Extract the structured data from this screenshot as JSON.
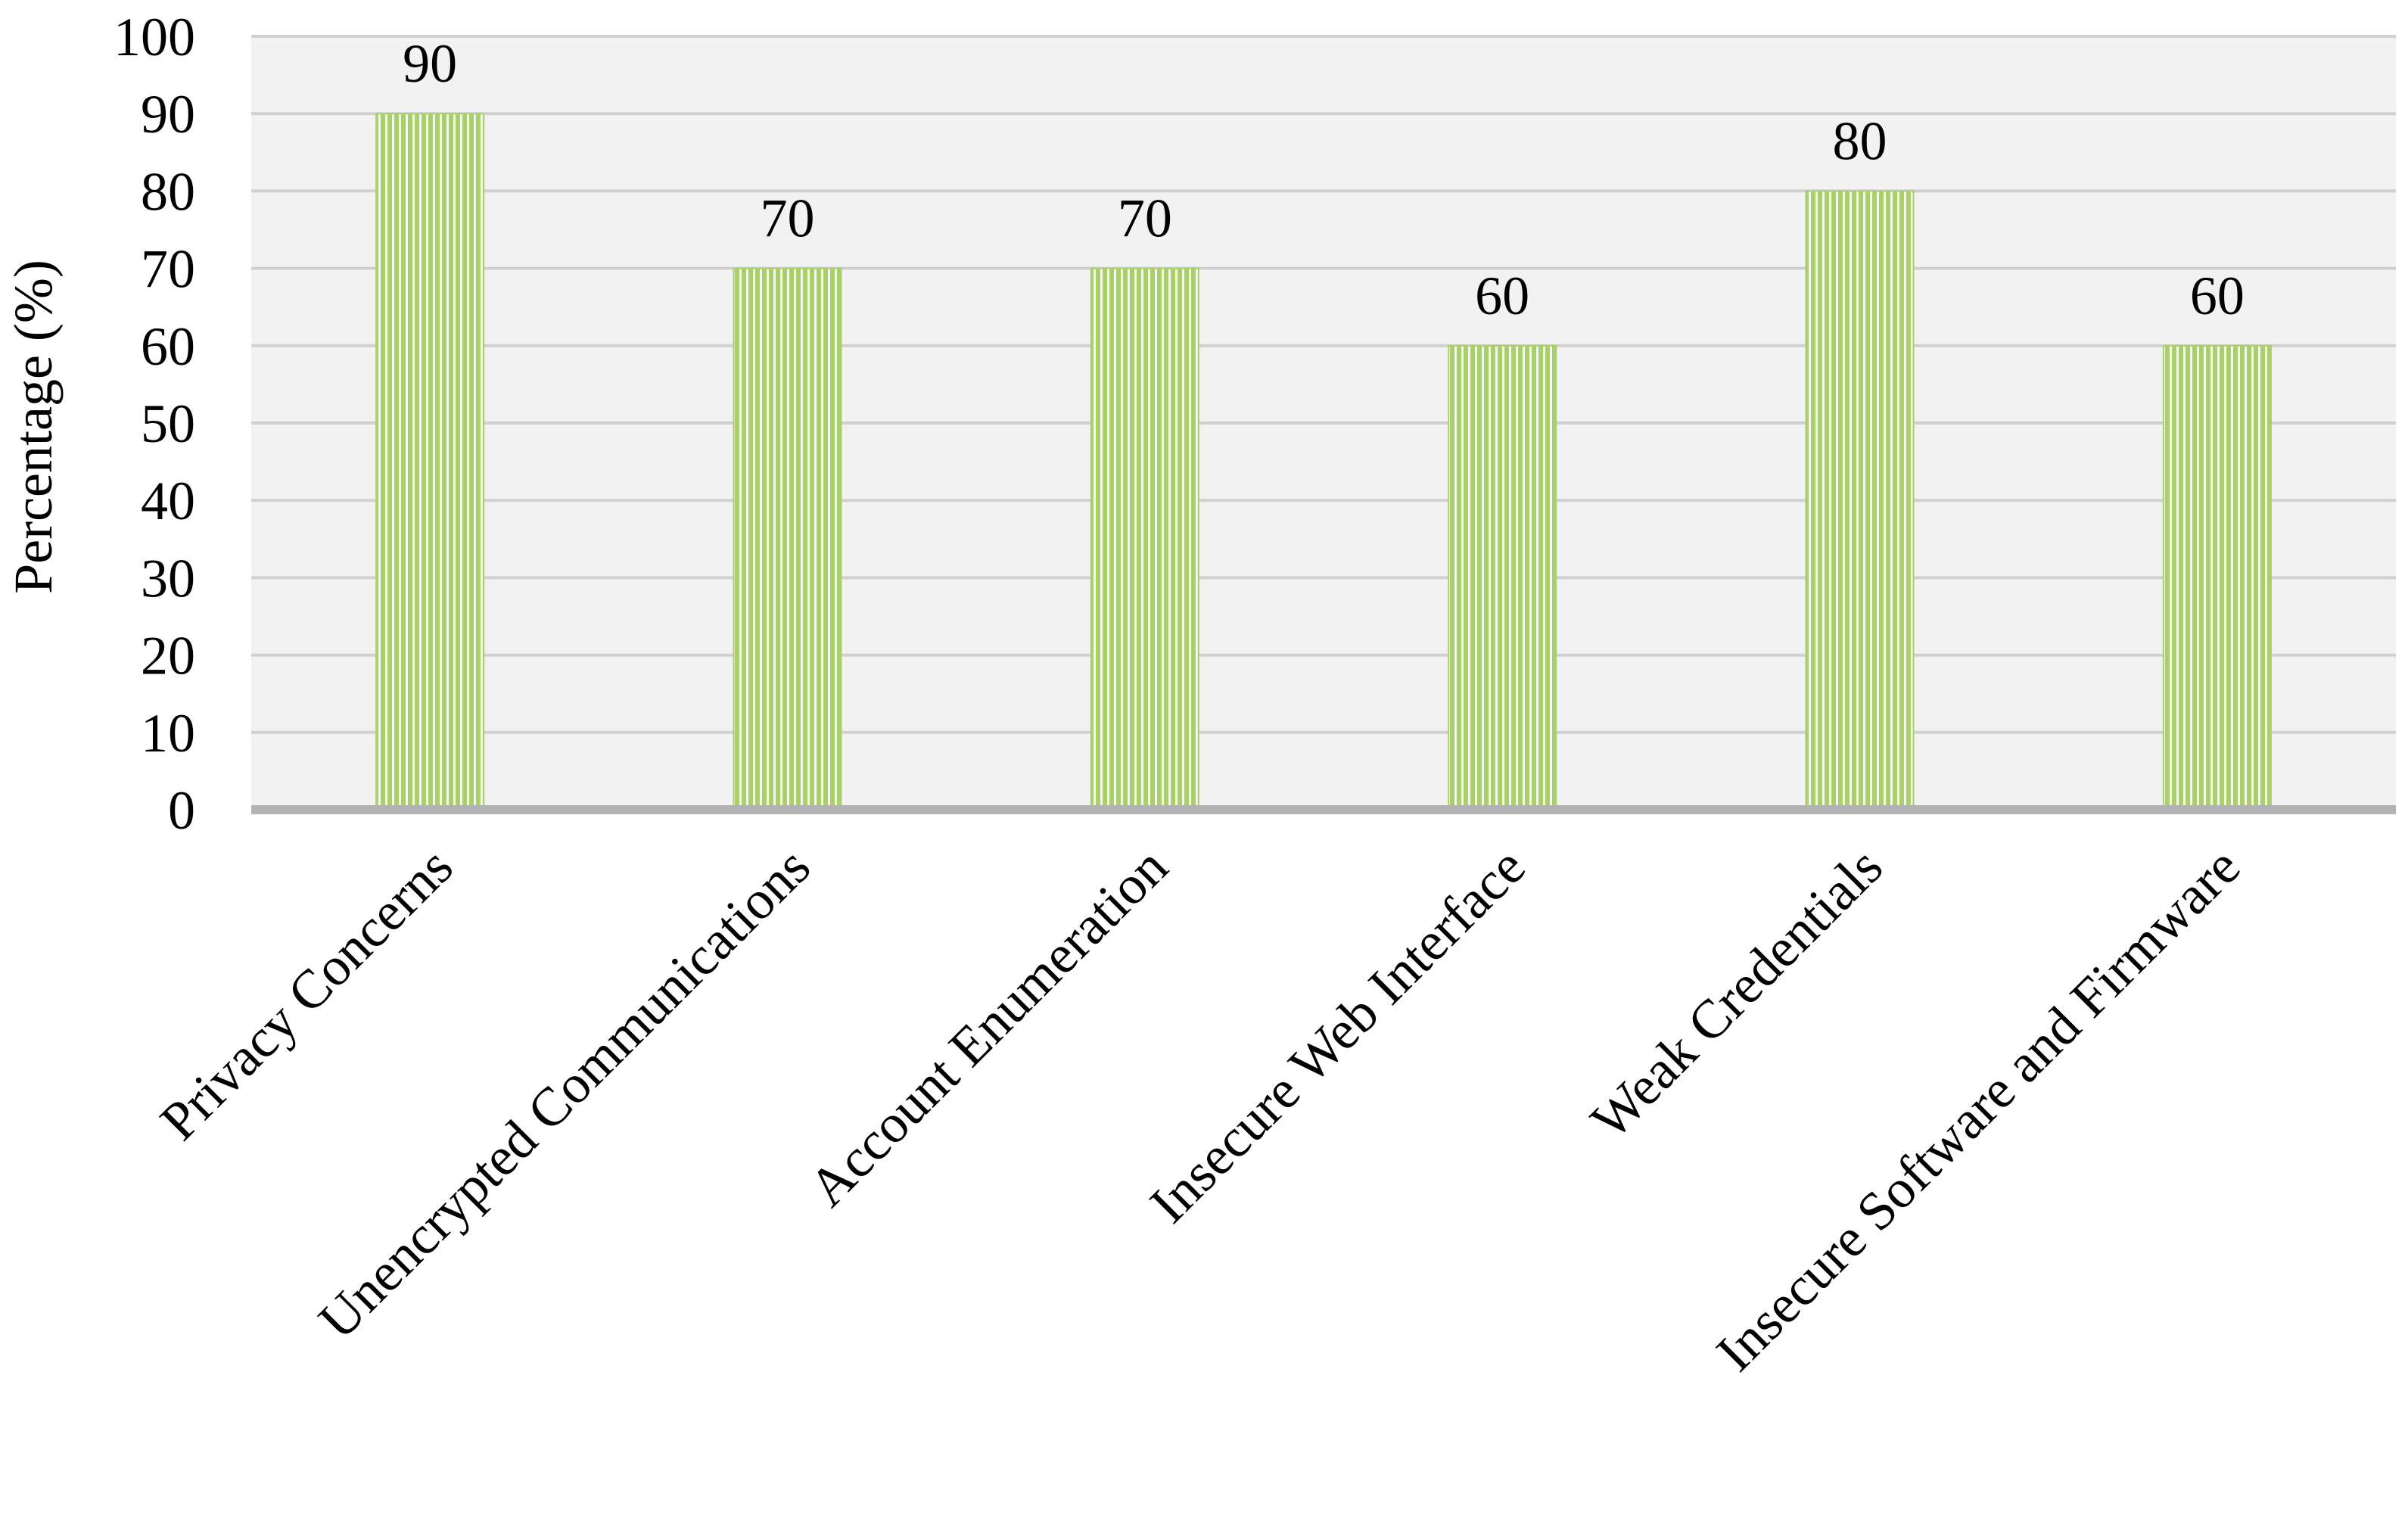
{
  "chart_data": {
    "type": "bar",
    "categories": [
      "Privacy Concerns",
      "Unencrypted Communications",
      "Account Enumeration",
      "Insecure Web Interface",
      "Weak Credentials",
      "Insecure Software and Firmware"
    ],
    "values": [
      90,
      70,
      70,
      60,
      80,
      60
    ],
    "data_labels": [
      "90",
      "70",
      "70",
      "60",
      "80",
      "60"
    ],
    "title": "",
    "xlabel": "",
    "ylabel": "Percentage (%)",
    "ylim": [
      0,
      100
    ],
    "yticks": [
      0,
      10,
      20,
      30,
      40,
      50,
      60,
      70,
      80,
      90,
      100
    ],
    "grid": true,
    "legend": "none",
    "colors": {
      "bar_fill": "#a9cf6e",
      "bar_stripe": "#f4f9e8",
      "plot_background": "#f2f2f2",
      "grid": "#d0d0d0",
      "x_axis": "#b3b3b3"
    }
  }
}
